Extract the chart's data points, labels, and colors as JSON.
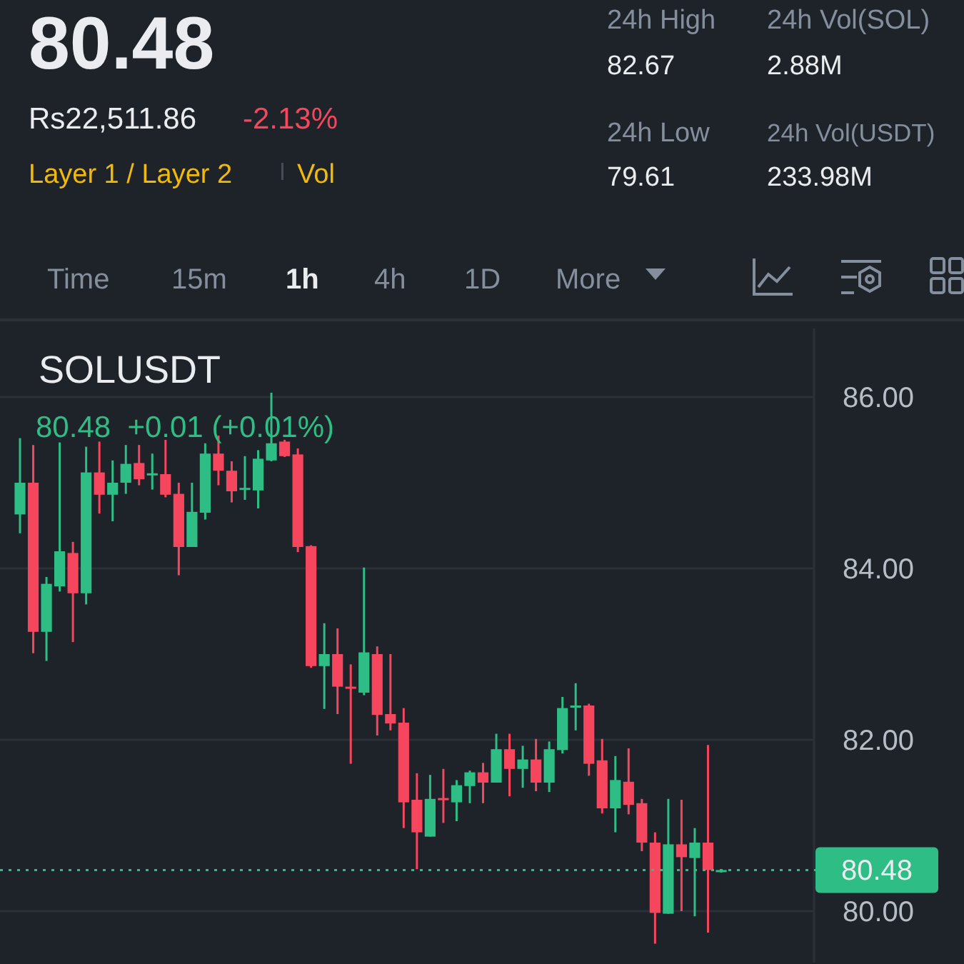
{
  "chart_data": {
    "type": "candlestick",
    "title": "SOLUSDT",
    "annotations": [
      "80.48",
      "Rs22,511.86",
      "-2.13%",
      "Layer 1 / Layer 2",
      "Vol",
      "24h High",
      "82.67",
      "24h Vol(SOL)",
      "2.88M",
      "24h Low",
      "79.61",
      "24h Vol(USDT)",
      "233.98M",
      "Time",
      "15m",
      "1h",
      "4h",
      "1D",
      "More",
      "80.48  +0.01 (+0.01%)"
    ],
    "categories": [
      null,
      null,
      null,
      null,
      null,
      null,
      null,
      null,
      null,
      null,
      null,
      null,
      null,
      null,
      null,
      null,
      null,
      null,
      null,
      null,
      null,
      null,
      null,
      null,
      null,
      null,
      null,
      null,
      null,
      null,
      null,
      null,
      null,
      null,
      null,
      null,
      null,
      null,
      null,
      null,
      null,
      null,
      null,
      null,
      null,
      null,
      null,
      null,
      null,
      null,
      null,
      null,
      null,
      null
    ],
    "ohlc": [
      [
        84.63,
        85.52,
        84.41,
        85.0
      ],
      [
        85.0,
        85.44,
        83.01,
        83.26
      ],
      [
        83.26,
        83.9,
        82.92,
        83.82
      ],
      [
        83.79,
        85.47,
        83.73,
        84.2
      ],
      [
        84.18,
        84.31,
        83.14,
        83.71
      ],
      [
        83.71,
        85.42,
        83.58,
        85.12
      ],
      [
        85.12,
        85.48,
        84.64,
        84.86
      ],
      [
        84.86,
        85.26,
        84.55,
        85.0
      ],
      [
        85.0,
        85.44,
        84.87,
        85.22
      ],
      [
        85.23,
        85.44,
        84.97,
        85.04
      ],
      [
        85.09,
        85.34,
        84.92,
        85.11
      ],
      [
        85.1,
        85.5,
        84.83,
        84.86
      ],
      [
        84.87,
        85.0,
        83.92,
        84.25
      ],
      [
        84.25,
        85.0,
        84.25,
        84.66
      ],
      [
        84.65,
        85.46,
        84.57,
        85.34
      ],
      [
        85.34,
        85.55,
        84.97,
        85.14
      ],
      [
        85.14,
        85.25,
        84.77,
        84.9
      ],
      [
        84.92,
        85.31,
        84.8,
        84.94
      ],
      [
        84.91,
        85.38,
        84.7,
        85.28
      ],
      [
        85.26,
        86.05,
        85.25,
        85.46
      ],
      [
        85.48,
        85.5,
        85.3,
        85.31
      ],
      [
        85.33,
        85.4,
        84.19,
        84.25
      ],
      [
        84.26,
        84.27,
        82.84,
        82.86
      ],
      [
        82.86,
        83.36,
        82.36,
        83.0
      ],
      [
        83.0,
        83.3,
        82.3,
        82.62
      ],
      [
        82.62,
        82.88,
        81.72,
        82.6
      ],
      [
        82.55,
        84.01,
        82.52,
        83.02
      ],
      [
        83.0,
        83.09,
        82.05,
        82.29
      ],
      [
        82.3,
        83.0,
        82.11,
        82.19
      ],
      [
        82.2,
        82.37,
        80.97,
        81.27
      ],
      [
        81.3,
        81.61,
        80.49,
        80.92
      ],
      [
        80.87,
        81.59,
        80.87,
        81.31
      ],
      [
        81.32,
        81.66,
        81.03,
        81.3
      ],
      [
        81.27,
        81.53,
        81.05,
        81.47
      ],
      [
        81.46,
        81.64,
        81.26,
        81.62
      ],
      [
        81.62,
        81.73,
        81.26,
        81.5
      ],
      [
        81.5,
        82.07,
        81.5,
        81.89
      ],
      [
        81.89,
        82.07,
        81.34,
        81.66
      ],
      [
        81.66,
        81.93,
        81.44,
        81.77
      ],
      [
        81.77,
        82.01,
        81.4,
        81.5
      ],
      [
        81.5,
        81.98,
        81.39,
        81.89
      ],
      [
        81.88,
        82.5,
        81.84,
        82.37
      ],
      [
        82.38,
        82.66,
        82.11,
        82.4
      ],
      [
        82.4,
        82.42,
        81.58,
        81.72
      ],
      [
        81.76,
        82.01,
        81.14,
        81.2
      ],
      [
        81.2,
        81.81,
        80.92,
        81.53
      ],
      [
        81.51,
        81.9,
        81.13,
        81.24
      ],
      [
        81.26,
        81.31,
        80.7,
        80.8
      ],
      [
        80.8,
        80.92,
        79.62,
        79.98
      ],
      [
        79.97,
        81.31,
        79.97,
        80.78
      ],
      [
        80.78,
        81.3,
        80.0,
        80.63
      ],
      [
        80.62,
        80.97,
        79.94,
        80.8
      ],
      [
        80.8,
        81.94,
        79.75,
        80.48
      ],
      [
        80.47,
        80.49,
        80.45,
        80.48
      ]
    ],
    "ylim": [
      79.4,
      86.8
    ],
    "yticks": [
      {
        "value": 80,
        "label": "80.00"
      },
      {
        "value": 82,
        "label": "82.00"
      },
      {
        "value": 84,
        "label": "84.00"
      },
      {
        "value": 86,
        "label": "86.00"
      }
    ],
    "grid": "y",
    "ref_lines": [
      {
        "axis": "y",
        "value": 80.48,
        "label": "80.48",
        "color": "#2ebd85",
        "line_style": "dotted"
      }
    ]
  }
}
